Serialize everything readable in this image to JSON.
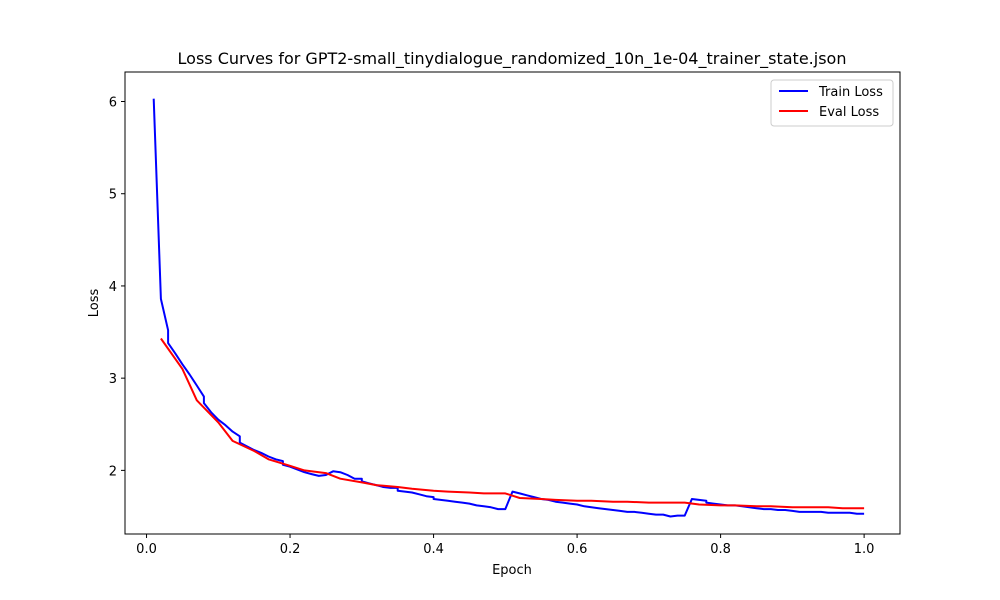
{
  "chart_data": {
    "type": "line",
    "title": "Loss Curves for GPT2-small_tinydialogue_randomized_10n_1e-04_trainer_state.json",
    "xlabel": "Epoch",
    "ylabel": "Loss",
    "xlim": [
      -0.03,
      1.05
    ],
    "ylim": [
      1.31,
      6.32
    ],
    "xticks": [
      0.0,
      0.2,
      0.4,
      0.6,
      0.8,
      1.0
    ],
    "xtick_labels": [
      "0.0",
      "0.2",
      "0.4",
      "0.6",
      "0.8",
      "1.0"
    ],
    "yticks": [
      2,
      3,
      4,
      5,
      6
    ],
    "ytick_labels": [
      "2",
      "3",
      "4",
      "5",
      "6"
    ],
    "grid": false,
    "legend_position": "top-right",
    "series": [
      {
        "name": "Train Loss",
        "color": "#0000ff",
        "x": [
          0.01,
          0.02,
          0.03,
          0.03,
          0.04,
          0.05,
          0.06,
          0.07,
          0.08,
          0.08,
          0.09,
          0.1,
          0.11,
          0.12,
          0.13,
          0.13,
          0.14,
          0.15,
          0.16,
          0.17,
          0.18,
          0.19,
          0.19,
          0.2,
          0.21,
          0.22,
          0.23,
          0.24,
          0.25,
          0.26,
          0.27,
          0.28,
          0.29,
          0.3,
          0.3,
          0.31,
          0.32,
          0.33,
          0.34,
          0.35,
          0.35,
          0.36,
          0.37,
          0.38,
          0.39,
          0.4,
          0.4,
          0.41,
          0.42,
          0.43,
          0.44,
          0.45,
          0.46,
          0.47,
          0.48,
          0.49,
          0.5,
          0.51,
          0.52,
          0.53,
          0.54,
          0.55,
          0.56,
          0.57,
          0.58,
          0.59,
          0.6,
          0.61,
          0.62,
          0.63,
          0.64,
          0.65,
          0.66,
          0.67,
          0.68,
          0.69,
          0.7,
          0.71,
          0.72,
          0.73,
          0.74,
          0.75,
          0.76,
          0.77,
          0.78,
          0.78,
          0.79,
          0.8,
          0.81,
          0.82,
          0.83,
          0.84,
          0.85,
          0.86,
          0.87,
          0.88,
          0.89,
          0.9,
          0.91,
          0.92,
          0.93,
          0.94,
          0.95,
          0.96,
          0.97,
          0.98,
          0.99,
          1.0
        ],
        "y": [
          6.03,
          3.86,
          3.52,
          3.38,
          3.27,
          3.15,
          3.04,
          2.92,
          2.8,
          2.73,
          2.63,
          2.55,
          2.49,
          2.42,
          2.37,
          2.3,
          2.26,
          2.22,
          2.19,
          2.15,
          2.12,
          2.1,
          2.06,
          2.04,
          2.01,
          1.98,
          1.96,
          1.94,
          1.95,
          1.99,
          1.98,
          1.95,
          1.91,
          1.91,
          1.88,
          1.86,
          1.84,
          1.82,
          1.81,
          1.81,
          1.78,
          1.77,
          1.76,
          1.74,
          1.72,
          1.71,
          1.69,
          1.68,
          1.67,
          1.66,
          1.65,
          1.64,
          1.62,
          1.61,
          1.6,
          1.58,
          1.58,
          1.77,
          1.75,
          1.73,
          1.71,
          1.69,
          1.68,
          1.66,
          1.65,
          1.64,
          1.63,
          1.61,
          1.6,
          1.59,
          1.58,
          1.57,
          1.56,
          1.55,
          1.55,
          1.54,
          1.53,
          1.52,
          1.52,
          1.5,
          1.51,
          1.51,
          1.69,
          1.68,
          1.67,
          1.65,
          1.64,
          1.63,
          1.62,
          1.62,
          1.61,
          1.6,
          1.59,
          1.58,
          1.58,
          1.57,
          1.57,
          1.56,
          1.55,
          1.55,
          1.55,
          1.55,
          1.54,
          1.54,
          1.54,
          1.54,
          1.53,
          1.53
        ]
      },
      {
        "name": "Eval Loss",
        "color": "#ff0000",
        "x": [
          0.02,
          0.05,
          0.07,
          0.1,
          0.12,
          0.15,
          0.17,
          0.2,
          0.22,
          0.25,
          0.27,
          0.3,
          0.32,
          0.35,
          0.37,
          0.4,
          0.42,
          0.45,
          0.47,
          0.5,
          0.52,
          0.55,
          0.57,
          0.6,
          0.62,
          0.65,
          0.67,
          0.7,
          0.72,
          0.75,
          0.77,
          0.8,
          0.82,
          0.85,
          0.87,
          0.9,
          0.92,
          0.95,
          0.97,
          1.0
        ],
        "y": [
          3.43,
          3.1,
          2.76,
          2.52,
          2.32,
          2.21,
          2.12,
          2.05,
          2.0,
          1.97,
          1.91,
          1.87,
          1.84,
          1.82,
          1.8,
          1.78,
          1.77,
          1.76,
          1.75,
          1.75,
          1.7,
          1.69,
          1.68,
          1.67,
          1.67,
          1.66,
          1.66,
          1.65,
          1.65,
          1.65,
          1.63,
          1.62,
          1.62,
          1.61,
          1.61,
          1.6,
          1.6,
          1.6,
          1.59,
          1.59
        ]
      }
    ]
  }
}
